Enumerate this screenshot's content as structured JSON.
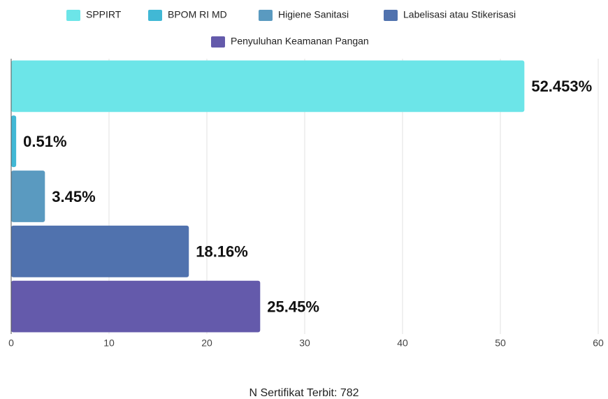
{
  "chart_data": {
    "type": "bar",
    "orientation": "horizontal",
    "series": [
      {
        "name": "SPPIRT",
        "color": "#6ce5e8",
        "values": [
          52.453
        ],
        "value_labels": [
          "52.453%"
        ]
      },
      {
        "name": "BPOM RI MD",
        "color": "#41b8d5",
        "values": [
          0.51
        ],
        "value_labels": [
          "0.51%"
        ]
      },
      {
        "name": "Higiene Sanitasi",
        "color": "#5a9ac0",
        "values": [
          3.45
        ],
        "value_labels": [
          "3.45%"
        ]
      },
      {
        "name": "Labelisasi atau Stikerisasi",
        "color": "#5072ae",
        "values": [
          18.16
        ],
        "value_labels": [
          "18.16%"
        ]
      },
      {
        "name": "Penyuluhan Keamanan Pangan",
        "color": "#645aab",
        "values": [
          25.45
        ],
        "value_labels": [
          "25.45%"
        ]
      }
    ],
    "xlim": [
      0,
      60
    ],
    "xticks": [
      0,
      10,
      20,
      30,
      40,
      50,
      60
    ],
    "grid": true,
    "xlabel": "N Sertifikat Terbit: 782",
    "legend": "top"
  }
}
